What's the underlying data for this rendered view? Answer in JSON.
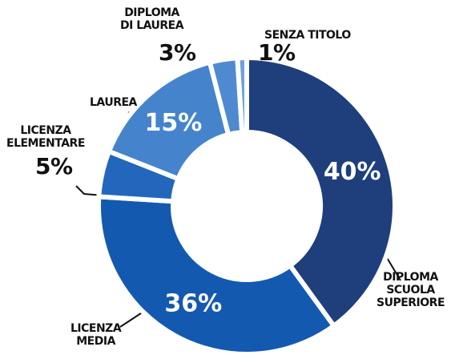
{
  "chart_data": {
    "type": "donut",
    "categories": [
      "DIPLOMA\nSCUOLA\nSUPERIORE",
      "LICENZA\nMEDIA",
      "LICENZA\nELEMENTARE",
      "LAUREA",
      "DIPLOMA\nDI LAUREA",
      "SENZA TITOLO"
    ],
    "values": [
      40,
      36,
      5,
      15,
      3,
      1
    ],
    "value_labels": [
      "40%",
      "36%",
      "5%",
      "15%",
      "3%",
      "1%"
    ],
    "colors": [
      "#1e3f7c",
      "#1459b0",
      "#2367bd",
      "#4584cc",
      "#4f8ad0",
      "#6fa1dc"
    ]
  }
}
